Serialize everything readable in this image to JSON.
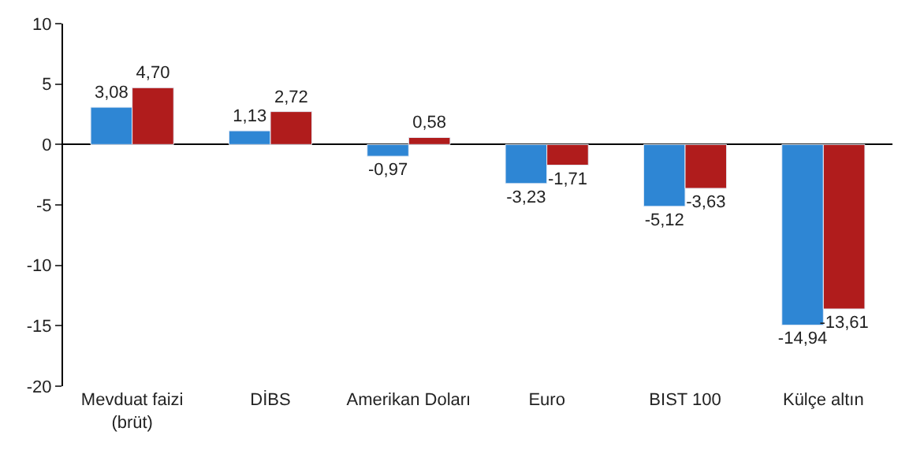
{
  "chart_data": {
    "type": "bar",
    "categories": [
      "Mevduat faizi\n(brüt)",
      "DİBS",
      "Amerikan Doları",
      "Euro",
      "BIST 100",
      "Külçe altın"
    ],
    "series": [
      {
        "color": "#2e86d4",
        "values": [
          3.08,
          1.13,
          -0.97,
          -3.23,
          -5.12,
          -14.94
        ],
        "value_labels": [
          "3,08",
          "1,13",
          "-0,97",
          "-3,23",
          "-5,12",
          "-14,94"
        ]
      },
      {
        "color": "#b01c1c",
        "values": [
          4.7,
          2.72,
          0.58,
          -1.71,
          -3.63,
          -13.61
        ],
        "value_labels": [
          "4,70",
          "2,72",
          "0,58",
          "-1,71",
          "-3,63",
          "-13,61"
        ]
      }
    ],
    "ylim": [
      -20,
      10
    ],
    "yticks": [
      -20,
      -15,
      -10,
      -5,
      0,
      5,
      10
    ]
  }
}
